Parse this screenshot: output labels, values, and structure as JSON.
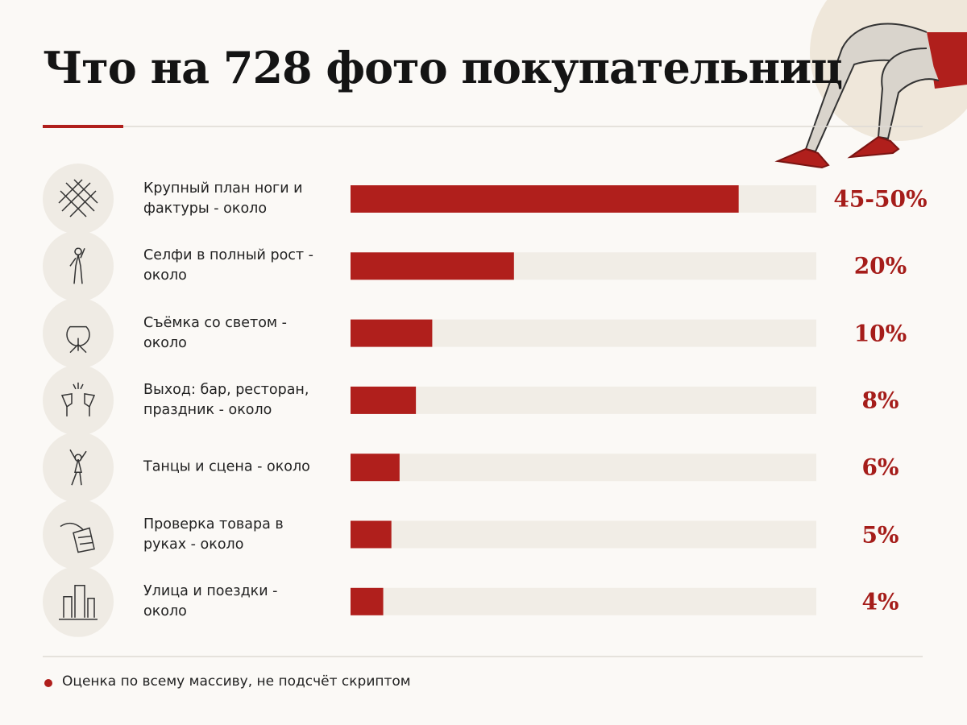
{
  "chart_data": {
    "type": "bar",
    "orientation": "horizontal",
    "title": "Что на 728 фото покупательниц",
    "categories": [
      "Крупный план ноги и фактуры - около",
      "Селфи в полный рост - около",
      "Съёмка со светом - около",
      "Выход: бар, ресторан, праздник - около",
      "Танцы и сцена - около",
      "Проверка товара в руках - около",
      "Улица и поездки - около"
    ],
    "values": [
      47.5,
      20,
      10,
      8,
      6,
      5,
      4
    ],
    "value_labels": [
      "45-50%",
      "20%",
      "10%",
      "8%",
      "6%",
      "5%",
      "4%"
    ],
    "color": "#b01f1c",
    "xlim": [
      0,
      57
    ],
    "note": "Оценка по всему массиву, не подсчёт скриптом"
  }
}
